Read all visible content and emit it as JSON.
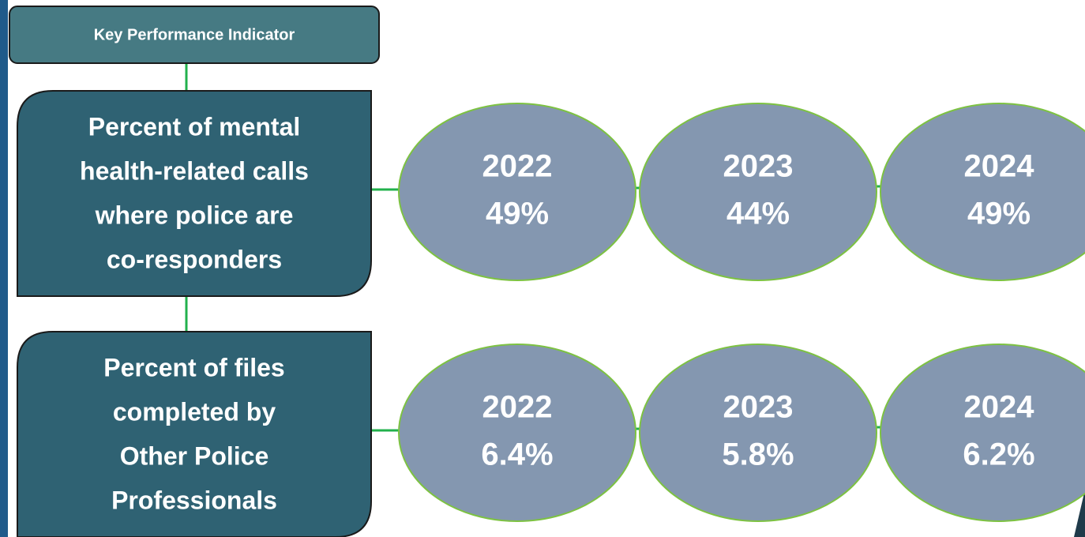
{
  "header": {
    "title": "Key Performance Indicator"
  },
  "kpis": [
    {
      "label_lines": [
        "Percent of mental",
        "health-related calls",
        "where police are",
        "co-responders"
      ],
      "results": [
        {
          "year": "2022",
          "value": "49%"
        },
        {
          "year": "2023",
          "value": "44%"
        },
        {
          "year": "2024",
          "value": "49%"
        }
      ]
    },
    {
      "label_lines": [
        "Percent of files",
        "completed by",
        "Other Police",
        "Professionals"
      ],
      "results": [
        {
          "year": "2022",
          "value": "6.4%"
        },
        {
          "year": "2023",
          "value": "5.8%"
        },
        {
          "year": "2024",
          "value": "6.2%"
        }
      ]
    }
  ]
}
